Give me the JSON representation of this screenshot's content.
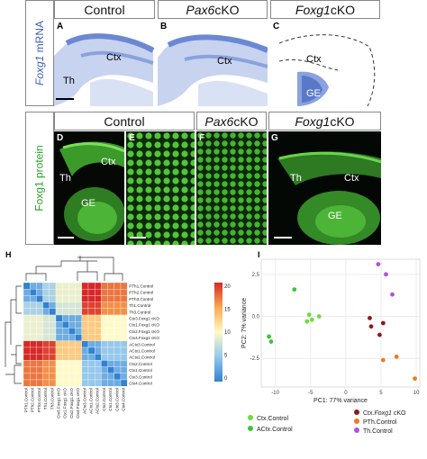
{
  "top_row": {
    "side_label": {
      "gene": "Foxg1",
      "suffix": " mRNA"
    },
    "headers": [
      {
        "plain": "Control",
        "italic": "",
        "suffix": ""
      },
      {
        "plain": "",
        "italic": "Pax6",
        "suffix": " cKO"
      },
      {
        "plain": "",
        "italic": "Foxg1",
        "suffix": " cKO"
      }
    ],
    "panels": [
      {
        "letter": "A",
        "labels": [
          "Ctx",
          "Th"
        ]
      },
      {
        "letter": "B",
        "labels": [
          "Ctx"
        ]
      },
      {
        "letter": "C",
        "labels": [
          "Ctx",
          "GE"
        ]
      }
    ]
  },
  "middle_row": {
    "side_label": "Foxg1 protein",
    "headers": [
      {
        "plain": "Control",
        "italic": "",
        "suffix": ""
      },
      {
        "plain": "",
        "italic": "Pax6",
        "suffix": " cKO"
      },
      {
        "plain": "",
        "italic": "Foxg1",
        "suffix": " cKO"
      }
    ],
    "panels": [
      {
        "letter": "D",
        "labels": [
          "Ctx",
          "Th",
          "GE"
        ]
      },
      {
        "letter": "E",
        "labels": []
      },
      {
        "letter": "F",
        "labels": []
      },
      {
        "letter": "G",
        "labels": [
          "Th",
          "Ctx",
          "GE"
        ]
      }
    ]
  },
  "heatmap": {
    "letter": "H",
    "row_labels": [
      "PTh1.Control",
      "PTh2.Control",
      "PTh3.Control",
      "Th1.Control",
      "Th3.Control",
      "Ctx3.Foxg1 cKO",
      "Ctx1.Foxg1 cKO",
      "Ctx2.Foxg1 cKO",
      "Ctx4.Foxg1 cKO",
      "ACtx3.Control",
      "ACtx1.Control",
      "ACtx2.Control",
      "Ctx2.Control",
      "Ctx1.Control",
      "Ctx3.Control",
      "Ctx4.Control"
    ],
    "col_labels": [
      "PTh1.Control",
      "PTh2.Control",
      "PTh3.Control",
      "Th1.Control",
      "Th3.Control",
      "Ctx3.Foxg1 cKO",
      "Ctx1.Foxg1 cKO",
      "Ctx2.Foxg1 cKO",
      "Ctx4.Foxg1 cKO",
      "ACtx3.Control",
      "ACtx1.Control",
      "ACtx2.Control",
      "Ctx2.Control",
      "Ctx1.Control",
      "Ctx3.Control",
      "Ctx4.Control"
    ],
    "colorbar_ticks": [
      "20",
      "15",
      "10",
      "5",
      "0"
    ]
  },
  "chart_data": {
    "type": "scatter",
    "letter": "I",
    "xlabel": "PC1: 77% variance",
    "ylabel": "PC2: 7% variance",
    "xlim": [
      -12,
      10.5
    ],
    "ylim": [
      -4.2,
      3.4
    ],
    "x_ticks": [
      -10,
      -5,
      0,
      5,
      10
    ],
    "y_ticks": [
      -2.5,
      0.0,
      2.5
    ],
    "y_tick_labels": [
      "-2.5",
      "0.0",
      "2.5"
    ],
    "grid": true,
    "legend_position": "bottom",
    "series": [
      {
        "name": "Ctx.Control",
        "color": "#6fdc3c",
        "points": [
          [
            -5.5,
            -0.3
          ],
          [
            -4.8,
            -0.2
          ],
          [
            -3.8,
            0.0
          ],
          [
            -5.2,
            0.1
          ]
        ]
      },
      {
        "name": "ACtx.Control",
        "color": "#3ec33e",
        "points": [
          [
            -10.9,
            -1.2
          ],
          [
            -10.6,
            -1.5
          ],
          [
            -7.3,
            1.6
          ]
        ]
      },
      {
        "name": "Ctx.Foxg1 cKO",
        "color": "#8b1a1a",
        "points": [
          [
            3.4,
            -0.1
          ],
          [
            3.6,
            -0.6
          ],
          [
            4.8,
            -1.1
          ],
          [
            5.3,
            -0.4
          ]
        ]
      },
      {
        "name": "PTh.Control",
        "color": "#ef7a1f",
        "points": [
          [
            5.3,
            -2.6
          ],
          [
            7.2,
            -2.4
          ],
          [
            9.8,
            -3.7
          ]
        ]
      },
      {
        "name": "Th.Control",
        "color": "#b44fe0",
        "points": [
          [
            4.6,
            3.1
          ],
          [
            5.7,
            2.5
          ],
          [
            6.6,
            1.3
          ]
        ]
      }
    ],
    "legend_left": [
      "Ctx.Control",
      "ACtx.Control"
    ],
    "legend_right": [
      {
        "plain": "Ctx.",
        "italic": "Foxg1",
        "suffix": " cKO"
      },
      {
        "plain": "PTh.Control",
        "italic": "",
        "suffix": ""
      },
      {
        "plain": "Th.Control",
        "italic": "",
        "suffix": ""
      }
    ],
    "legend_right_colors": [
      "#8b1a1a",
      "#ef7a1f",
      "#b44fe0"
    ],
    "legend_left_colors": [
      "#6fdc3c",
      "#3ec33e"
    ]
  }
}
